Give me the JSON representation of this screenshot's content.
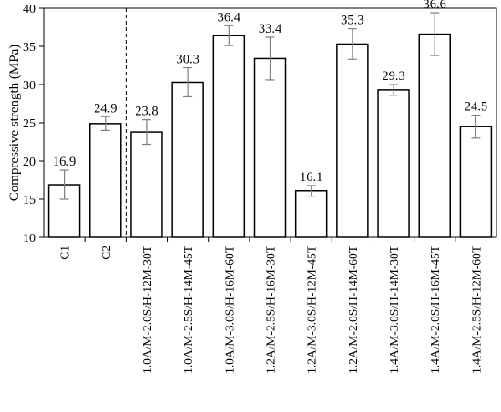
{
  "chart_data": {
    "type": "bar",
    "ylabel": "Compressive strength (MPa)",
    "xlabel": "",
    "ylim": [
      10,
      40
    ],
    "yticks": [
      10,
      15,
      20,
      25,
      30,
      35,
      40
    ],
    "grid": false,
    "legend": "none",
    "separator_after_category": 2,
    "bar_color": "#ffffff",
    "bar_edge_color": "#000000",
    "error_bar_color": "#7f7f7f",
    "categories": [
      "C1",
      "C2",
      "1.0A/M-2.0S/H-12M-30T",
      "1.0A/M-2.5S/H-14M-45T",
      "1.0A/M-3.0S/H-16M-60T",
      "1.2A/M-2.5S/H-16M-30T",
      "1.2A/M-3.0S/H-12M-45T",
      "1.2A/M-2.0S/H-14M-60T",
      "1.4A/M-3.0S/H-14M-30T",
      "1.4A/M-2.0S/H-16M-45T",
      "1.4A/M-2.5S/H-12M-60T"
    ],
    "values": [
      16.9,
      24.9,
      23.8,
      30.3,
      36.4,
      33.4,
      16.1,
      35.3,
      29.3,
      36.6,
      24.5
    ],
    "value_labels": [
      "16.9",
      "24.9",
      "23.8",
      "30.3",
      "36.4",
      "33.4",
      "16.1",
      "35.3",
      "29.3",
      "36.6",
      "24.5"
    ],
    "error": [
      1.9,
      0.9,
      1.6,
      1.9,
      1.3,
      2.8,
      0.7,
      2.0,
      0.7,
      2.8,
      1.5
    ]
  }
}
